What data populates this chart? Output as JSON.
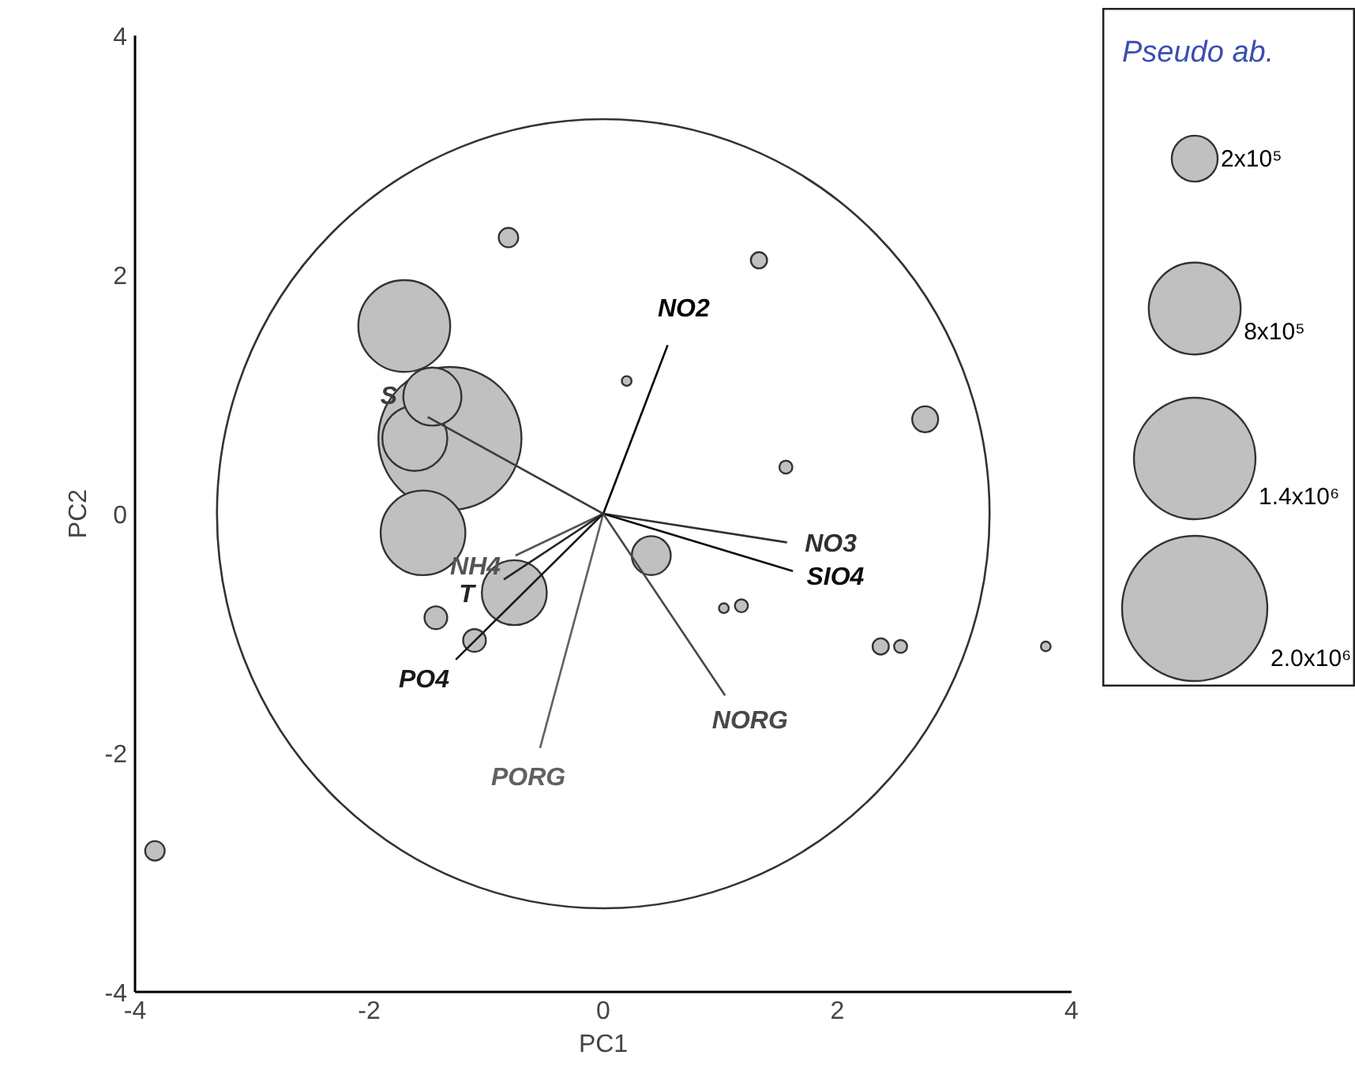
{
  "chart_data": {
    "type": "bubble",
    "xlabel": "PC1",
    "ylabel": "PC2",
    "legend_title": "Pseudo ab.",
    "xlim": [
      -4,
      4
    ],
    "ylim": [
      -4,
      4
    ],
    "xticks": [
      -4,
      -2,
      0,
      2,
      4
    ],
    "yticks": [
      -4,
      -2,
      0,
      2,
      4
    ],
    "grid": false,
    "legend": "right",
    "size_legend": [
      {
        "value": 200000,
        "label": "2x10⁵"
      },
      {
        "value": 800000,
        "label": "8x10⁵"
      },
      {
        "value": 1400000,
        "label": "1.4x10⁶"
      },
      {
        "value": 2000000,
        "label": "2.0x10⁶"
      }
    ],
    "series": [
      {
        "color": "#c0c0c0",
        "marker": "circle",
        "x": [
          -1.31,
          -1.7,
          -1.54,
          -1.61,
          -0.76,
          -1.46,
          0.41,
          -1.43,
          -1.1,
          -0.81,
          0.2,
          1.33,
          2.75,
          1.56,
          1.03,
          1.18,
          2.37,
          2.54,
          3.78,
          -3.83
        ],
        "values": [
          0.63,
          1.57,
          -0.16,
          0.63,
          -0.66,
          0.98,
          -0.35,
          -0.87,
          -1.06,
          2.31,
          1.11,
          2.12,
          0.79,
          0.39,
          -0.79,
          -0.77,
          -1.11,
          -1.11,
          -1.11,
          -2.82
        ],
        "sizes": [
          1940000,
          800000,
          680000,
          400000,
          400000,
          320000,
          144000,
          49000,
          49000,
          36000,
          9000,
          25000,
          64000,
          16000,
          9000,
          16000,
          25000,
          16000,
          9000,
          36000
        ]
      },
      {
        "type": "line",
        "name": "NO2",
        "color": "#000000",
        "x": [
          0,
          0.55
        ],
        "values": [
          0,
          1.41
        ]
      },
      {
        "type": "line",
        "name": "NO3",
        "color": "#303030",
        "x": [
          0,
          1.57
        ],
        "values": [
          0,
          -0.24
        ]
      },
      {
        "type": "line",
        "name": "SIO4",
        "color": "#0c0c0c",
        "x": [
          0,
          1.62
        ],
        "values": [
          0,
          -0.48
        ]
      },
      {
        "type": "line",
        "name": "NORG",
        "color": "#484848",
        "x": [
          0,
          1.04
        ],
        "values": [
          0,
          -1.52
        ]
      },
      {
        "type": "line",
        "name": "PORG",
        "color": "#606060",
        "x": [
          0,
          -0.54
        ],
        "values": [
          0,
          -1.96
        ]
      },
      {
        "type": "line",
        "name": "PO4",
        "color": "#181818",
        "x": [
          0,
          -1.26
        ],
        "values": [
          0,
          -1.22
        ]
      },
      {
        "type": "line",
        "name": "NH4",
        "color": "#545454",
        "x": [
          0,
          -0.75
        ],
        "values": [
          0,
          -0.35
        ]
      },
      {
        "type": "line",
        "name": "T",
        "color": "#242424",
        "x": [
          0,
          -0.85
        ],
        "values": [
          0,
          -0.55
        ]
      },
      {
        "type": "line",
        "name": "S",
        "color": "#3c3c3c",
        "x": [
          0,
          -1.5
        ],
        "values": [
          0,
          0.81
        ]
      }
    ]
  }
}
